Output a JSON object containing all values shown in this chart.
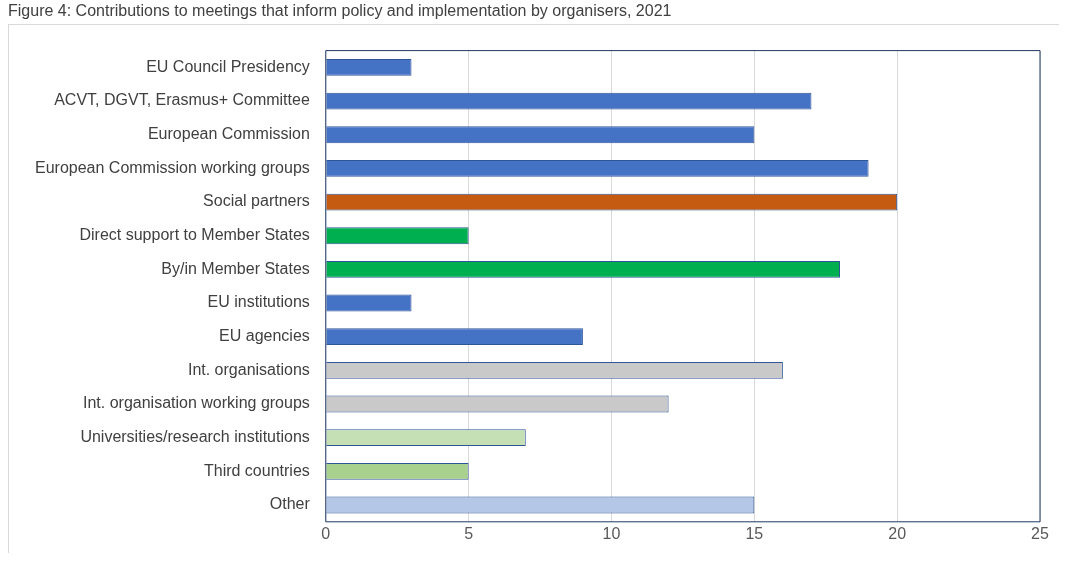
{
  "chart_data": {
    "type": "bar",
    "orientation": "horizontal",
    "title": "Figure 4: Contributions to meetings that inform policy and implementation by organisers, 2021",
    "categories": [
      "EU Council Presidency",
      "ACVT, DGVT, Erasmus+ Committee",
      "European Commission",
      "European Commission working groups",
      "Social partners",
      "Direct support to Member States",
      "By/in Member States",
      "EU institutions",
      "EU agencies",
      "Int. organisations",
      "Int. organisation working groups",
      "Universities/research institutions",
      "Third countries",
      "Other"
    ],
    "values": [
      3,
      17,
      15,
      19,
      20,
      5,
      18,
      3,
      9,
      16,
      12,
      7,
      5,
      15
    ],
    "colors": [
      "#4472c4",
      "#4472c4",
      "#4472c4",
      "#4472c4",
      "#c55a11",
      "#00b050",
      "#00b050",
      "#4472c4",
      "#4472c4",
      "#c9c9c9",
      "#c9c9c9",
      "#c5e0b4",
      "#a9d18e",
      "#b4c7e7"
    ],
    "xlim": [
      0,
      25
    ],
    "xticks": [
      0,
      5,
      10,
      15,
      20,
      25
    ],
    "grid": "x",
    "legend": false
  }
}
